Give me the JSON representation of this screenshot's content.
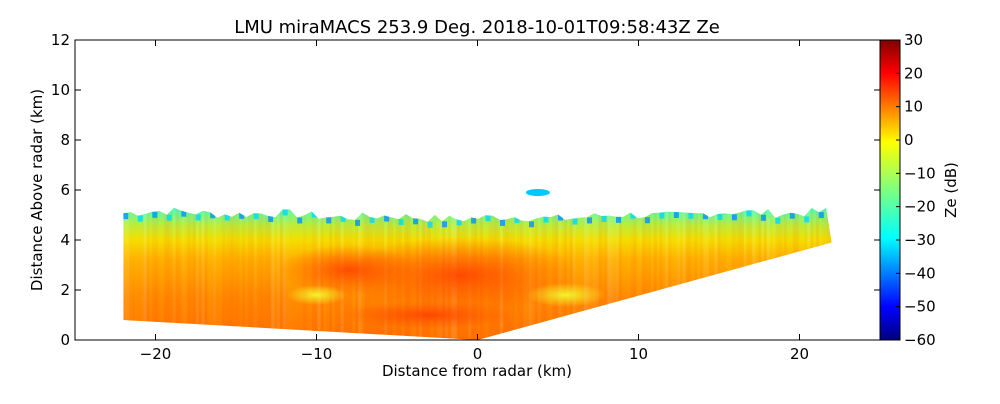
{
  "chart_data": {
    "type": "heatmap",
    "title": "LMU miraMACS 253.9 Deg. 2018-10-01T09:58:43Z  Ze",
    "xlabel": "Distance from radar (km)",
    "ylabel": "Distance Above radar  (km)",
    "xlim": [
      -25,
      25
    ],
    "ylim": [
      0,
      12
    ],
    "xticks": [
      -20,
      -10,
      0,
      10,
      20
    ],
    "xtick_labels": [
      "−20",
      "−10",
      "0",
      "10",
      "20"
    ],
    "yticks": [
      0,
      2,
      4,
      6,
      8,
      10,
      12
    ],
    "ytick_labels": [
      "0",
      "2",
      "4",
      "6",
      "8",
      "10",
      "12"
    ],
    "colorbar": {
      "label": "Ze (dB)",
      "range": [
        -60,
        30
      ],
      "ticks": [
        30,
        20,
        10,
        0,
        -10,
        -20,
        -30,
        -40,
        -50,
        -60
      ],
      "tick_labels": [
        "30",
        "20",
        "10",
        "0",
        "−10",
        "−20",
        "−30",
        "−40",
        "−50",
        "−60"
      ],
      "colormap": "jet"
    },
    "echo_region": {
      "left_edge_x": -22,
      "right_edge_x": 22,
      "lower_left_y": 0.8,
      "lower_right_y": 3.9,
      "apex": [
        0,
        0
      ],
      "top_y_approx": 5.3,
      "cloud_top_bump": {
        "x_range": [
          3,
          4.5
        ],
        "y_range": [
          5.8,
          6.0
        ]
      }
    },
    "reflectivity_layers_db": [
      {
        "height_km": [
          0.0,
          2.0
        ],
        "ze_db": 12
      },
      {
        "height_km": [
          2.0,
          3.5
        ],
        "ze_db": 10
      },
      {
        "height_km": [
          3.5,
          4.3
        ],
        "ze_db": 0
      },
      {
        "height_km": [
          4.3,
          4.9
        ],
        "ze_db": -12
      },
      {
        "height_km": [
          4.9,
          5.6
        ],
        "ze_db": -28
      }
    ]
  }
}
